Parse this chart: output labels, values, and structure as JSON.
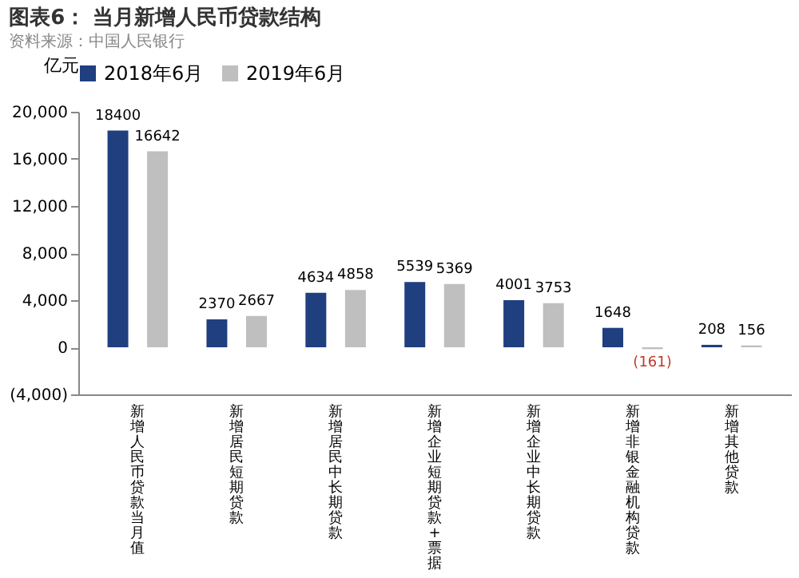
{
  "chart_data": {
    "type": "bar",
    "title": "图表6：  当月新增人民币贷款结构",
    "ylabel": "亿元",
    "categories": [
      "新增人民币贷款当月值",
      "新增居民短期贷款",
      "新增居民中长期贷款",
      "新增企业短期贷款+票据",
      "新增企业中长期贷款",
      "新增非银金融机构贷款",
      "新增其他贷款"
    ],
    "series": [
      {
        "name": "2018年6月",
        "color": "#1f3f7f",
        "values": [
          18400,
          2370,
          4634,
          5539,
          4001,
          1648,
          208
        ],
        "value_labels": [
          "18400",
          "2370",
          "4634",
          "5539",
          "4001",
          "1648",
          "208"
        ]
      },
      {
        "name": "2019年6月",
        "color": "#bfbfbf",
        "values": [
          16642,
          2667,
          4858,
          5369,
          3753,
          -161,
          156
        ],
        "value_labels": [
          "16642",
          "2667",
          "4858",
          "5369",
          "3753",
          "(161)",
          "156"
        ]
      }
    ],
    "ylim": [
      -4000,
      20000
    ],
    "yticks": [
      {
        "value": -4000,
        "label": "(4,000)"
      },
      {
        "value": 0,
        "label": "0"
      },
      {
        "value": 4000,
        "label": "4,000"
      },
      {
        "value": 8000,
        "label": "8,000"
      },
      {
        "value": 12000,
        "label": "12,000"
      },
      {
        "value": 16000,
        "label": "16,000"
      },
      {
        "value": 20000,
        "label": "20,000"
      }
    ],
    "grid": false,
    "legend": "top",
    "annotations": [
      "资料来源：中国人民银行"
    ]
  }
}
